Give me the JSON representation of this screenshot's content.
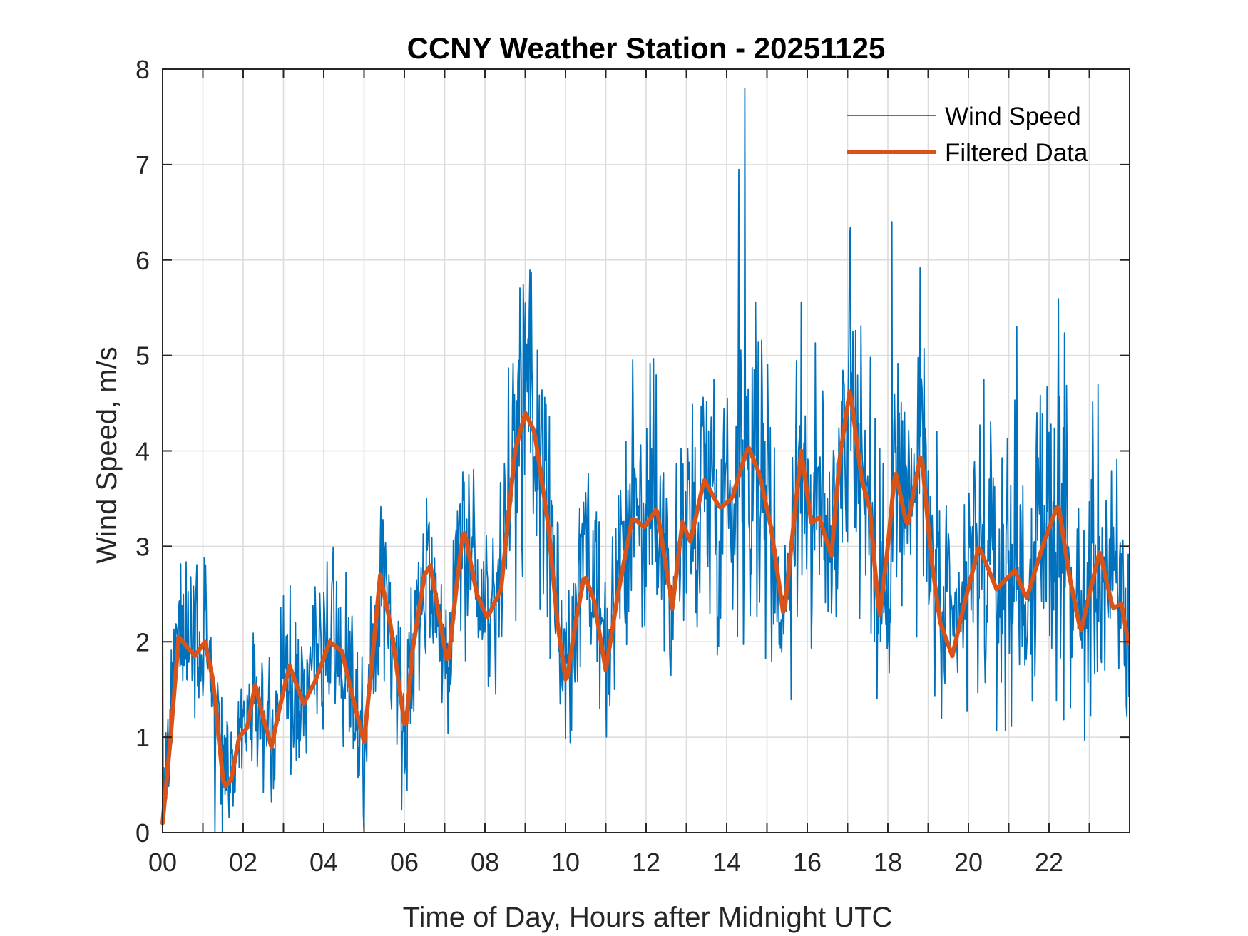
{
  "chart_data": {
    "type": "line",
    "title": "CCNY Weather Station - 20251125",
    "xlabel": "Time of Day, Hours after Midnight UTC",
    "ylabel": "Wind Speed, m/s",
    "xlim": [
      0,
      24
    ],
    "ylim": [
      0,
      8
    ],
    "xticks": [
      0,
      2,
      4,
      6,
      8,
      10,
      12,
      14,
      16,
      18,
      20,
      22
    ],
    "xtick_labels": [
      "00",
      "02",
      "04",
      "06",
      "08",
      "10",
      "12",
      "14",
      "16",
      "18",
      "20",
      "22"
    ],
    "xminor_step": 1,
    "yticks": [
      0,
      1,
      2,
      3,
      4,
      5,
      6,
      7,
      8
    ],
    "ytick_labels": [
      "0",
      "1",
      "2",
      "3",
      "4",
      "5",
      "6",
      "7",
      "8"
    ],
    "grid": true,
    "legend_position": "top-right",
    "series": [
      {
        "name": "Wind Speed",
        "color": "#0072BD",
        "style": "thin",
        "note": "Raw high-frequency samples (~1 per minute); too many to transcribe individually. Values below the peaks/troughs are approximate, regenerated around the filtered curve with amplitude growing through the day.",
        "approx_extrema": {
          "max": {
            "x": 14.45,
            "y": 7.8
          },
          "secondary_peaks": [
            {
              "x": 14.3,
              "y": 6.95
            },
            {
              "x": 17.05,
              "y": 6.25
            },
            {
              "x": 18.1,
              "y": 6.4
            },
            {
              "x": 9.0,
              "y": 5.55
            },
            {
              "x": 21.2,
              "y": 5.3
            }
          ],
          "min": {
            "x": 1.3,
            "y": 0.0
          }
        }
      },
      {
        "name": "Filtered Data",
        "color": "#D95319",
        "style": "thick",
        "x": [
          0.0,
          0.2,
          0.4,
          0.6,
          0.8,
          1.05,
          1.25,
          1.52,
          1.7,
          1.9,
          2.1,
          2.3,
          2.5,
          2.7,
          2.9,
          3.15,
          3.5,
          3.8,
          4.15,
          4.45,
          4.7,
          5.0,
          5.2,
          5.4,
          5.67,
          6.03,
          6.2,
          6.5,
          6.65,
          6.85,
          7.08,
          7.3,
          7.47,
          7.8,
          8.06,
          8.4,
          8.75,
          9.0,
          9.23,
          9.58,
          9.8,
          10.02,
          10.25,
          10.47,
          10.7,
          11.0,
          11.3,
          11.66,
          11.96,
          12.27,
          12.65,
          12.9,
          13.1,
          13.44,
          13.83,
          14.13,
          14.53,
          14.82,
          15.1,
          15.42,
          15.85,
          16.1,
          16.3,
          16.6,
          16.8,
          17.06,
          17.35,
          17.55,
          17.79,
          18.0,
          18.18,
          18.48,
          18.83,
          19.07,
          19.3,
          19.6,
          19.9,
          20.26,
          20.7,
          21.15,
          21.44,
          21.88,
          22.23,
          22.5,
          22.79,
          23.0,
          23.26,
          23.58,
          23.8,
          23.97
        ],
        "y": [
          0.1,
          1.0,
          2.05,
          1.95,
          1.85,
          2.0,
          1.6,
          0.47,
          0.55,
          1.0,
          1.1,
          1.55,
          1.2,
          0.9,
          1.3,
          1.75,
          1.35,
          1.6,
          2.0,
          1.9,
          1.45,
          0.95,
          1.8,
          2.7,
          2.15,
          1.05,
          1.9,
          2.7,
          2.8,
          2.3,
          1.75,
          2.6,
          3.2,
          2.5,
          2.25,
          2.55,
          4.0,
          4.4,
          4.2,
          3.2,
          2.2,
          1.55,
          2.2,
          2.7,
          2.45,
          1.7,
          2.5,
          3.3,
          3.2,
          3.4,
          2.35,
          3.25,
          3.05,
          3.7,
          3.4,
          3.5,
          4.05,
          3.75,
          3.2,
          2.25,
          4.0,
          3.25,
          3.3,
          2.9,
          3.9,
          4.65,
          3.7,
          3.4,
          2.25,
          3.0,
          3.8,
          3.2,
          4.0,
          2.9,
          2.2,
          1.85,
          2.4,
          3.0,
          2.55,
          2.75,
          2.45,
          3.05,
          3.45,
          2.7,
          2.1,
          2.5,
          2.95,
          2.35,
          2.4,
          1.98
        ]
      }
    ]
  }
}
